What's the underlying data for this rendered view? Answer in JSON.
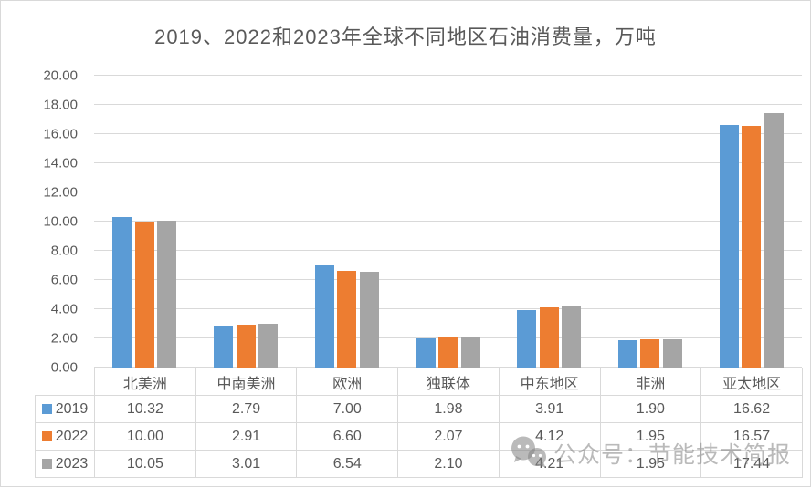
{
  "title": "2019、2022和2023年全球不同地区石油消费量，万吨",
  "watermark": {
    "text": "公众号：节能技术简报",
    "icon": "wechat-icon"
  },
  "colors": {
    "series_2019": "#5B9BD5",
    "series_2022": "#ED7D31",
    "series_2023": "#A5A5A5",
    "text": "#595959",
    "gridline": "#D9D9D9",
    "table_border": "#D9D9D9"
  },
  "chart_data": {
    "type": "bar",
    "title": "2019、2022和2023年全球不同地区石油消费量，万吨",
    "categories": [
      "北美洲",
      "中南美洲",
      "欧洲",
      "独联体",
      "中东地区",
      "非洲",
      "亚太地区"
    ],
    "series": [
      {
        "name": "2019",
        "color": "#5B9BD5",
        "values": [
          10.32,
          2.79,
          7.0,
          1.98,
          3.91,
          1.9,
          16.62
        ]
      },
      {
        "name": "2022",
        "color": "#ED7D31",
        "values": [
          10.0,
          2.91,
          6.6,
          2.07,
          4.12,
          1.95,
          16.57
        ]
      },
      {
        "name": "2023",
        "color": "#A5A5A5",
        "values": [
          10.05,
          3.01,
          6.54,
          2.1,
          4.21,
          1.95,
          17.44
        ]
      }
    ],
    "xlabel": "",
    "ylabel": "",
    "ylim": [
      0,
      20
    ],
    "ytick_step": 2,
    "ytick_labels": [
      "0.00",
      "2.00",
      "4.00",
      "6.00",
      "8.00",
      "10.00",
      "12.00",
      "14.00",
      "16.00",
      "18.00",
      "20.00"
    ],
    "grid": true,
    "legend_position": "data-table",
    "value_format": "0.00"
  }
}
